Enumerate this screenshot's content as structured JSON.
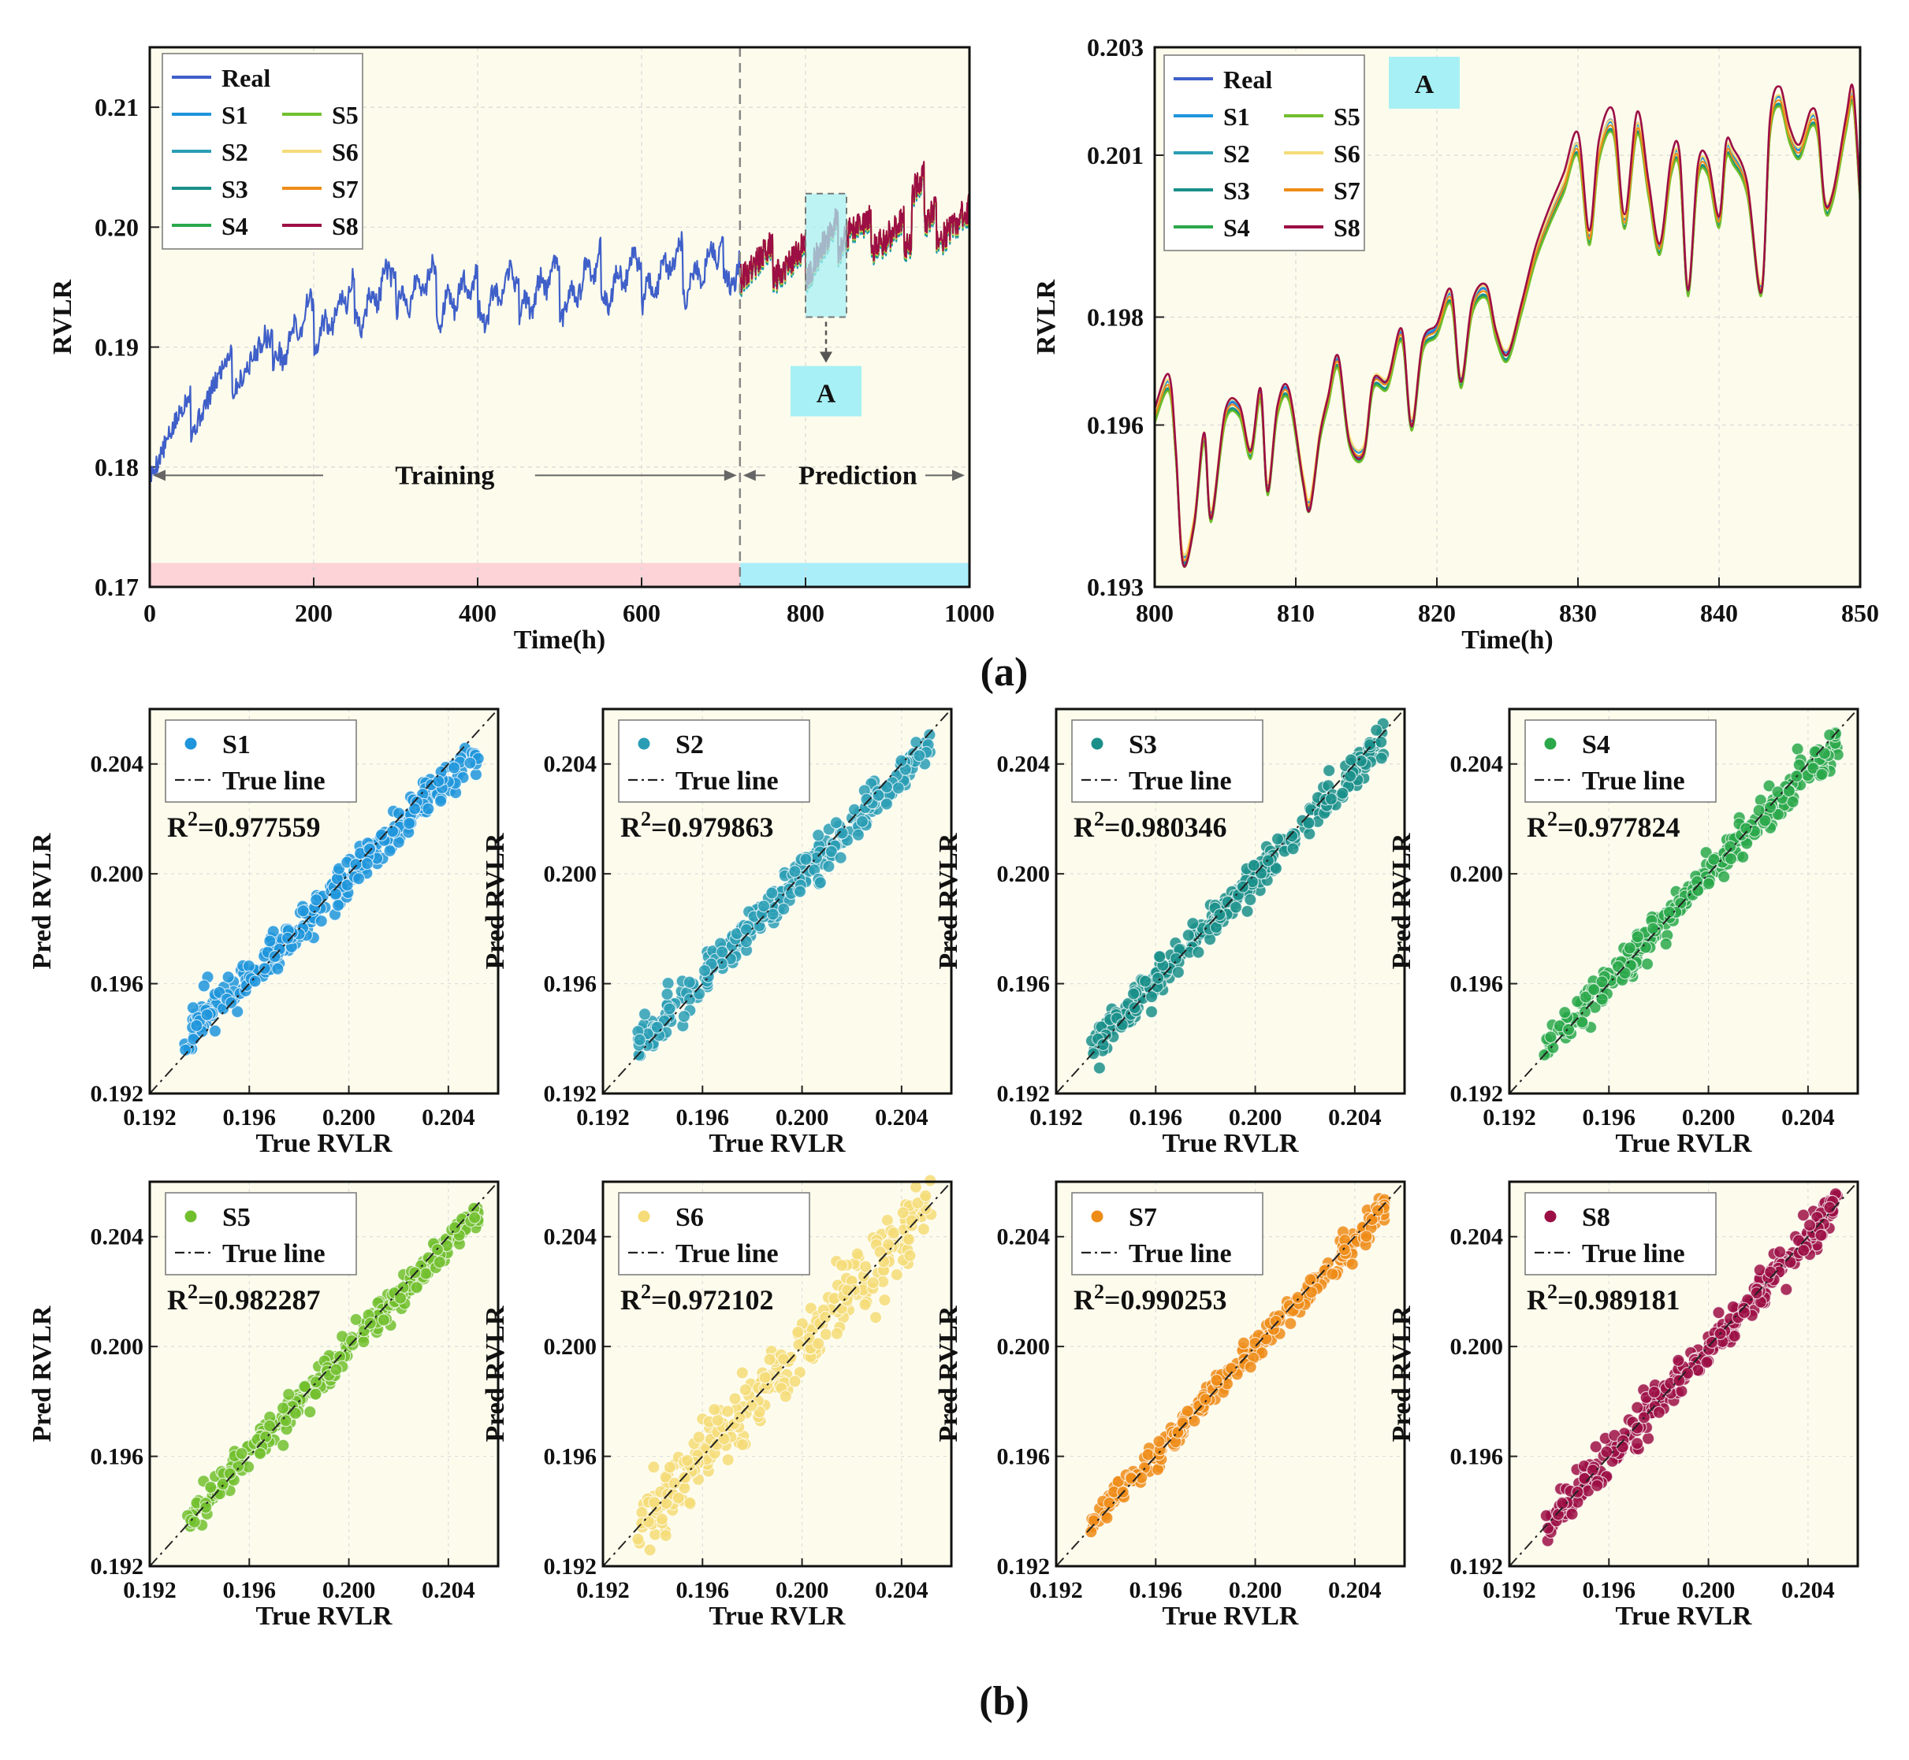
{
  "figure": {
    "panel_a_label": "(a)",
    "panel_b_label": "(b)"
  },
  "colors": {
    "bg": "#fdfcec",
    "Real": "#3f5fc9",
    "S1": "#1f95dc",
    "S2": "#2a9db5",
    "S3": "#1a8f8a",
    "S4": "#2aa84a",
    "S5": "#72bf2e",
    "S6": "#f5dc78",
    "S7": "#ee8c18",
    "S8": "#9c0f45",
    "training_band": "#fdd3d7",
    "prediction_band": "#aaeefa",
    "zoom_box": "#a7f0f5"
  },
  "chart_data": [
    {
      "id": "timeseries-full",
      "type": "line",
      "title": "",
      "xlabel": "Time(h)",
      "ylabel": "RVLR",
      "xlim": [
        0,
        1000
      ],
      "ylim": [
        0.17,
        0.215
      ],
      "xticks": [
        0,
        200,
        400,
        600,
        800,
        1000
      ],
      "xtick_labels": [
        "0",
        "200",
        "400",
        "600",
        "800",
        "1000"
      ],
      "yticks": [
        0.17,
        0.18,
        0.19,
        0.2,
        0.21
      ],
      "ytick_labels": [
        "0.17",
        "0.18",
        "0.19",
        "0.20",
        "0.21"
      ],
      "split_x": 720,
      "legend": {
        "position": "top-left",
        "entries": [
          "Real",
          "S1",
          "S2",
          "S3",
          "S4",
          "S5",
          "S6",
          "S7",
          "S8"
        ]
      },
      "annotations": {
        "training": "Training",
        "prediction": "Prediction",
        "zoom_label": "A",
        "zoom_range_x": [
          800,
          850
        ],
        "zoom_range_y": [
          0.1925,
          0.2028
        ]
      },
      "series_summary": [
        {
          "name": "Real",
          "x_range": [
            0,
            720
          ],
          "anchor_x": [
            0,
            100,
            200,
            300,
            400,
            500,
            600,
            720
          ],
          "anchor_y": [
            0.181,
            0.188,
            0.192,
            0.195,
            0.194,
            0.195,
            0.196,
            0.197
          ]
        },
        {
          "name": "S8",
          "x_range": [
            720,
            1000
          ],
          "anchor_x": [
            720,
            800,
            850,
            900,
            950,
            1000
          ],
          "anchor_y": [
            0.197,
            0.197,
            0.2,
            0.199,
            0.2,
            0.2
          ]
        }
      ]
    },
    {
      "id": "timeseries-zoom",
      "type": "line",
      "title": "",
      "xlabel": "Time(h)",
      "ylabel": "RVLR",
      "xlim": [
        800,
        850
      ],
      "ylim": [
        0.193,
        0.203
      ],
      "xticks": [
        800,
        810,
        820,
        830,
        840,
        850
      ],
      "xtick_labels": [
        "800",
        "810",
        "820",
        "830",
        "840",
        "850"
      ],
      "yticks": [
        0.193,
        0.196,
        0.198,
        0.201,
        0.203
      ],
      "ytick_labels": [
        "0.193",
        "0.196",
        "0.198",
        "0.201",
        "0.203"
      ],
      "legend": {
        "position": "top-left",
        "entries": [
          "Real",
          "S1",
          "S2",
          "S3",
          "S4",
          "S5",
          "S6",
          "S7",
          "S8"
        ]
      },
      "annotation": "A",
      "real_x": [
        800,
        801,
        801.5,
        802,
        802.8,
        803.5,
        804,
        805,
        806,
        806.8,
        807.5,
        808,
        808.7,
        809.5,
        810.5,
        811,
        811.7,
        812.3,
        813,
        813.8,
        814.8,
        815.5,
        816.5,
        817.5,
        818.2,
        819,
        820,
        821,
        821.7,
        822.5,
        823.5,
        824.2,
        825,
        826,
        827,
        828,
        829,
        830,
        830.8,
        831.5,
        832.5,
        833.3,
        834.2,
        835,
        835.8,
        836.6,
        837.2,
        837.8,
        838.5,
        839.2,
        840,
        840.5,
        841,
        842,
        843,
        843.6,
        844.3,
        845,
        845.7,
        846.5,
        847,
        847.5,
        848.1,
        849,
        849.5,
        850
      ],
      "real_y": [
        0.1962,
        0.1968,
        0.1955,
        0.1935,
        0.1942,
        0.1958,
        0.1943,
        0.1962,
        0.1963,
        0.1955,
        0.1966,
        0.1948,
        0.1963,
        0.1966,
        0.195,
        0.1945,
        0.1958,
        0.1965,
        0.1972,
        0.1957,
        0.1955,
        0.1968,
        0.1968,
        0.1977,
        0.196,
        0.1975,
        0.1978,
        0.1984,
        0.1968,
        0.1982,
        0.1985,
        0.1977,
        0.1973,
        0.1982,
        0.1992,
        0.1999,
        0.2005,
        0.2012,
        0.1995,
        0.2011,
        0.2016,
        0.1998,
        0.2016,
        0.2004,
        0.1993,
        0.2008,
        0.2009,
        0.1985,
        0.2007,
        0.2008,
        0.1998,
        0.2011,
        0.201,
        0.2004,
        0.1985,
        0.2015,
        0.2021,
        0.2014,
        0.2011,
        0.2017,
        0.2015,
        0.2001,
        0.2003,
        0.2016,
        0.2021,
        0.2002
      ],
      "series_offsets": {
        "S1": 2e-05,
        "S2": -0.00012,
        "S3": -0.0001,
        "S4": -0.00014,
        "S5": -0.00016,
        "S6": 6e-05,
        "S7": -4e-05,
        "S8": 8e-05
      }
    },
    {
      "id": "scatter-S1",
      "type": "scatter",
      "series": "S1",
      "xlabel": "True RVLR",
      "ylabel": "Pred RVLR",
      "xlim": [
        0.192,
        0.206
      ],
      "ylim": [
        0.192,
        0.206
      ],
      "ticks": [
        0.192,
        0.196,
        0.2,
        0.204
      ],
      "tick_labels": [
        "0.192",
        "0.196",
        "0.200",
        "0.204"
      ],
      "legend_series": "S1",
      "legend_line": "True line",
      "r2_prefix": "R",
      "r2_exp": "2",
      "r2_value": "=0.977559",
      "spread": 0.00038,
      "slope": 0.88,
      "seed": 11
    },
    {
      "id": "scatter-S2",
      "type": "scatter",
      "series": "S2",
      "xlabel": "True RVLR",
      "ylabel": "Pred RVLR",
      "xlim": [
        0.192,
        0.206
      ],
      "ylim": [
        0.192,
        0.206
      ],
      "ticks": [
        0.192,
        0.196,
        0.2,
        0.204
      ],
      "tick_labels": [
        "0.192",
        "0.196",
        "0.200",
        "0.204"
      ],
      "legend_series": "S2",
      "legend_line": "True line",
      "r2_prefix": "R",
      "r2_exp": "2",
      "r2_value": "=0.979863",
      "spread": 0.00034,
      "slope": 0.93,
      "seed": 22
    },
    {
      "id": "scatter-S3",
      "type": "scatter",
      "series": "S3",
      "xlabel": "True RVLR",
      "ylabel": "Pred RVLR",
      "xlim": [
        0.192,
        0.206
      ],
      "ylim": [
        0.192,
        0.206
      ],
      "ticks": [
        0.192,
        0.196,
        0.2,
        0.204
      ],
      "tick_labels": [
        "0.192",
        "0.196",
        "0.200",
        "0.204"
      ],
      "legend_series": "S3",
      "legend_line": "True line",
      "r2_prefix": "R",
      "r2_exp": "2",
      "r2_value": "=0.980346",
      "spread": 0.00033,
      "slope": 0.95,
      "seed": 33
    },
    {
      "id": "scatter-S4",
      "type": "scatter",
      "series": "S4",
      "xlabel": "True RVLR",
      "ylabel": "Pred RVLR",
      "xlim": [
        0.192,
        0.206
      ],
      "ylim": [
        0.192,
        0.206
      ],
      "ticks": [
        0.192,
        0.196,
        0.2,
        0.204
      ],
      "tick_labels": [
        "0.192",
        "0.196",
        "0.200",
        "0.204"
      ],
      "legend_series": "S4",
      "legend_line": "True line",
      "r2_prefix": "R",
      "r2_exp": "2",
      "r2_value": "=0.977824",
      "spread": 0.00036,
      "slope": 0.94,
      "seed": 44
    },
    {
      "id": "scatter-S5",
      "type": "scatter",
      "series": "S5",
      "xlabel": "True RVLR",
      "ylabel": "Pred RVLR",
      "xlim": [
        0.192,
        0.206
      ],
      "ylim": [
        0.192,
        0.206
      ],
      "ticks": [
        0.192,
        0.196,
        0.2,
        0.204
      ],
      "tick_labels": [
        "0.192",
        "0.196",
        "0.200",
        "0.204"
      ],
      "legend_series": "S5",
      "legend_line": "True line",
      "r2_prefix": "R",
      "r2_exp": "2",
      "r2_value": "=0.982287",
      "spread": 0.0003,
      "slope": 0.96,
      "seed": 55
    },
    {
      "id": "scatter-S6",
      "type": "scatter",
      "series": "S6",
      "xlabel": "True RVLR",
      "ylabel": "Pred RVLR",
      "xlim": [
        0.192,
        0.206
      ],
      "ylim": [
        0.192,
        0.206
      ],
      "ticks": [
        0.192,
        0.196,
        0.2,
        0.204
      ],
      "tick_labels": [
        "0.192",
        "0.196",
        "0.200",
        "0.204"
      ],
      "legend_series": "S6",
      "legend_line": "True line",
      "r2_prefix": "R",
      "r2_exp": "2",
      "r2_value": "=0.972102",
      "spread": 0.0006,
      "slope": 1.0,
      "seed": 66
    },
    {
      "id": "scatter-S7",
      "type": "scatter",
      "series": "S7",
      "xlabel": "True RVLR",
      "ylabel": "Pred RVLR",
      "xlim": [
        0.192,
        0.206
      ],
      "ylim": [
        0.192,
        0.206
      ],
      "ticks": [
        0.192,
        0.196,
        0.2,
        0.204
      ],
      "tick_labels": [
        "0.192",
        "0.196",
        "0.200",
        "0.204"
      ],
      "legend_series": "S7",
      "legend_line": "True line",
      "r2_prefix": "R",
      "r2_exp": "2",
      "r2_value": "=0.990253",
      "spread": 0.00028,
      "slope": 0.97,
      "seed": 77
    },
    {
      "id": "scatter-S8",
      "type": "scatter",
      "series": "S8",
      "xlabel": "True RVLR",
      "ylabel": "Pred RVLR",
      "xlim": [
        0.192,
        0.206
      ],
      "ylim": [
        0.192,
        0.206
      ],
      "ticks": [
        0.192,
        0.196,
        0.2,
        0.204
      ],
      "tick_labels": [
        "0.192",
        "0.196",
        "0.200",
        "0.204"
      ],
      "legend_series": "S8",
      "legend_line": "True line",
      "r2_prefix": "R",
      "r2_exp": "2",
      "r2_value": "=0.989181",
      "spread": 0.00036,
      "slope": 1.0,
      "seed": 88
    }
  ]
}
